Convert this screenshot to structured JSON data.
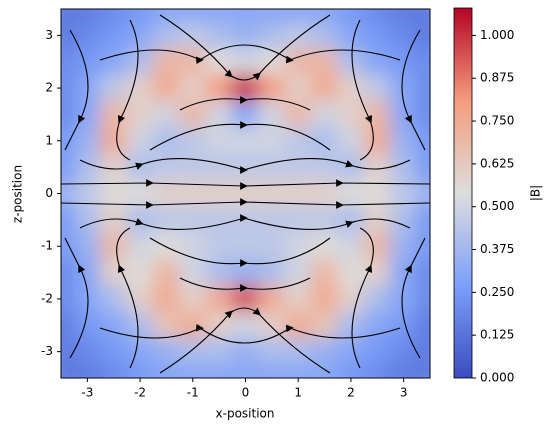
{
  "chart_data": {
    "type": "contourf",
    "xlabel": "x-position",
    "ylabel": "z-position",
    "colorbar_label": "|B|",
    "colormap": "coolwarm",
    "x": [
      -3.5,
      -3,
      -2.5,
      -2,
      -1.5,
      -1,
      -0.5,
      0,
      0.5,
      1,
      1.5,
      2,
      2.5,
      3,
      3.5
    ],
    "y": [
      3.5,
      3,
      2.5,
      2,
      1.5,
      1,
      0.5,
      0,
      -0.5,
      -1,
      -1.5,
      -2,
      -2.5,
      -3,
      -3.5
    ],
    "z": [
      [
        0.15,
        0.15,
        0.2,
        0.25,
        0.3,
        0.3,
        0.3,
        0.3,
        0.3,
        0.3,
        0.3,
        0.25,
        0.2,
        0.15,
        0.15
      ],
      [
        0.15,
        0.2,
        0.25,
        0.3,
        0.4,
        0.45,
        0.4,
        0.35,
        0.4,
        0.45,
        0.4,
        0.3,
        0.25,
        0.2,
        0.15
      ],
      [
        0.2,
        0.25,
        0.3,
        0.4,
        0.7,
        0.7,
        0.55,
        0.5,
        0.55,
        0.7,
        0.7,
        0.4,
        0.3,
        0.25,
        0.2
      ],
      [
        0.2,
        0.3,
        0.45,
        0.6,
        0.75,
        0.6,
        0.8,
        1.0,
        0.8,
        0.6,
        0.75,
        0.6,
        0.45,
        0.3,
        0.2
      ],
      [
        0.2,
        0.3,
        0.7,
        0.6,
        0.5,
        0.7,
        0.5,
        0.3,
        0.5,
        0.7,
        0.5,
        0.6,
        0.7,
        0.3,
        0.2
      ],
      [
        0.25,
        0.35,
        0.75,
        0.5,
        0.4,
        0.45,
        0.5,
        0.5,
        0.5,
        0.45,
        0.4,
        0.5,
        0.75,
        0.35,
        0.25
      ],
      [
        0.25,
        0.4,
        0.6,
        0.4,
        0.45,
        0.45,
        0.45,
        0.45,
        0.45,
        0.45,
        0.45,
        0.4,
        0.6,
        0.4,
        0.25
      ],
      [
        0.35,
        0.45,
        0.55,
        0.55,
        0.6,
        0.6,
        0.6,
        0.6,
        0.6,
        0.6,
        0.6,
        0.55,
        0.55,
        0.45,
        0.35
      ],
      [
        0.25,
        0.4,
        0.6,
        0.4,
        0.45,
        0.45,
        0.45,
        0.45,
        0.45,
        0.45,
        0.45,
        0.4,
        0.6,
        0.4,
        0.25
      ],
      [
        0.25,
        0.35,
        0.7,
        0.5,
        0.55,
        0.5,
        0.45,
        0.45,
        0.45,
        0.5,
        0.55,
        0.5,
        0.7,
        0.35,
        0.25
      ],
      [
        0.2,
        0.3,
        0.6,
        0.55,
        0.7,
        0.5,
        0.4,
        0.35,
        0.4,
        0.5,
        0.7,
        0.55,
        0.6,
        0.3,
        0.2
      ],
      [
        0.2,
        0.3,
        0.4,
        0.6,
        0.75,
        0.6,
        0.75,
        0.95,
        0.75,
        0.6,
        0.75,
        0.6,
        0.4,
        0.3,
        0.2
      ],
      [
        0.15,
        0.25,
        0.3,
        0.4,
        0.65,
        0.75,
        0.6,
        0.5,
        0.6,
        0.75,
        0.65,
        0.4,
        0.3,
        0.25,
        0.15
      ],
      [
        0.15,
        0.2,
        0.25,
        0.3,
        0.35,
        0.4,
        0.4,
        0.35,
        0.4,
        0.4,
        0.35,
        0.3,
        0.25,
        0.2,
        0.15
      ],
      [
        0.15,
        0.15,
        0.2,
        0.25,
        0.3,
        0.3,
        0.3,
        0.3,
        0.3,
        0.3,
        0.3,
        0.25,
        0.2,
        0.15,
        0.15
      ]
    ],
    "xlim": [
      -3.5,
      3.5
    ],
    "ylim": [
      -3.5,
      3.5
    ],
    "xticks": [
      -3,
      -2,
      -1,
      0,
      1,
      2,
      3
    ],
    "yticks": [
      -3,
      -2,
      -1,
      0,
      1,
      2,
      3
    ],
    "clim": [
      0,
      1.08
    ],
    "cticks": [
      {
        "value": 0,
        "label": "0.000"
      },
      {
        "value": 0.125,
        "label": "0.125"
      },
      {
        "value": 0.25,
        "label": "0.250"
      },
      {
        "value": 0.375,
        "label": "0.375"
      },
      {
        "value": 0.5,
        "label": "0.500"
      },
      {
        "value": 0.625,
        "label": "0.625"
      },
      {
        "value": 0.75,
        "label": "0.750"
      },
      {
        "value": 0.875,
        "label": "0.875"
      },
      {
        "value": 1,
        "label": "1.000"
      }
    ]
  }
}
